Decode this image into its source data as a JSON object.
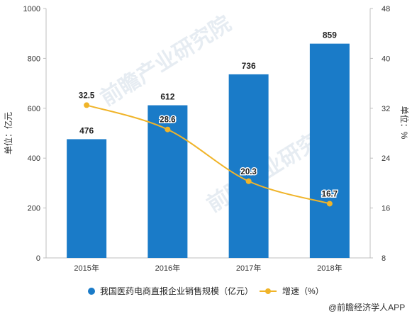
{
  "chart_data": {
    "type": "bar",
    "categories": [
      "2015年",
      "2016年",
      "2017年",
      "2018年"
    ],
    "series": [
      {
        "name": "我国医药电商直报企业销售规模（亿元）",
        "type": "bar",
        "axis": "left",
        "values": [
          476,
          612,
          736,
          859
        ],
        "color": "#1a7bc8"
      },
      {
        "name": "增速（%）",
        "type": "line",
        "axis": "right",
        "values": [
          32.5,
          28.6,
          20.3,
          16.7
        ],
        "color": "#f0b429"
      }
    ],
    "ylabel_left": "单位：亿元",
    "ylabel_right": "单位：%",
    "ylim_left": [
      0,
      1000
    ],
    "yticks_left": [
      0,
      200,
      400,
      600,
      800,
      1000
    ],
    "ylim_right": [
      8,
      48
    ],
    "yticks_right": [
      8,
      16,
      24,
      32,
      40,
      48
    ],
    "grid": false,
    "legend_position": "bottom"
  },
  "watermark": {
    "text": "前瞻产业研究院"
  },
  "source": {
    "text": "@前瞻经济学人APP"
  }
}
